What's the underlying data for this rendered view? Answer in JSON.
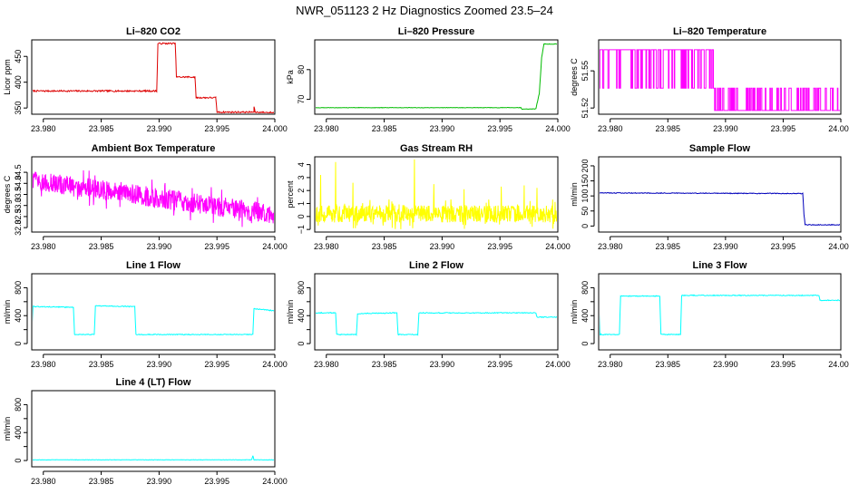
{
  "figure": {
    "title": "NWR_051123  2 Hz Diagnostics Zoomed 23.5–24"
  },
  "colors": {
    "red": "#dd0000",
    "green": "#00bb00",
    "magenta": "#ff00ff",
    "yellow": "#ffff00",
    "blue": "#0000bb",
    "cyan": "#00ffff",
    "axis": "#000000"
  },
  "chart_data": [
    {
      "id": "co2",
      "type": "line",
      "title": "Li–820 CO2",
      "ylabel": "Licor ppm",
      "color": "red",
      "xlim": [
        23.979,
        24.0
      ],
      "ylim": [
        338,
        482
      ],
      "xticks": [
        23.98,
        23.985,
        23.99,
        23.995,
        24.0
      ],
      "xtick_labels": [
        "23.980",
        "23.985",
        "23.990",
        "23.995",
        "24.000"
      ],
      "yticks": [
        350,
        400,
        450
      ],
      "ytick_labels": [
        "350",
        "400",
        "450"
      ],
      "series": [
        {
          "name": "CO2",
          "pattern": "steps",
          "noise": 1.5,
          "x": [
            23.979,
            23.9898,
            23.9899,
            23.9914,
            23.9915,
            23.9931,
            23.9932,
            23.9949,
            23.995,
            23.9982,
            23.9982,
            23.9983,
            24.0
          ],
          "y": [
            383,
            383,
            475,
            475,
            410,
            410,
            370,
            370,
            342,
            342,
            352,
            342,
            341
          ]
        }
      ]
    },
    {
      "id": "pressure",
      "type": "line",
      "title": "Li–820 Pressure",
      "ylabel": "kPa",
      "color": "green",
      "xlim": [
        23.979,
        24.0
      ],
      "ylim": [
        65,
        90
      ],
      "xticks": [
        23.98,
        23.985,
        23.99,
        23.995,
        24.0
      ],
      "xtick_labels": [
        "23.980",
        "23.985",
        "23.990",
        "23.995",
        "24.000"
      ],
      "yticks": [
        70,
        80
      ],
      "ytick_labels": [
        "70",
        "80"
      ],
      "series": [
        {
          "name": "pressure",
          "pattern": "steps",
          "noise": 0.08,
          "x": [
            23.979,
            23.9968,
            23.9969,
            23.9981,
            23.9984,
            23.9986,
            23.9988,
            24.0
          ],
          "y": [
            67.2,
            67.2,
            66.7,
            66.8,
            72,
            84,
            88.6,
            88.6
          ]
        }
      ]
    },
    {
      "id": "temperature",
      "type": "line",
      "title": "Li–820 Temperature",
      "ylabel": "degrees C",
      "color": "magenta",
      "xlim": [
        23.979,
        24.0
      ],
      "ylim": [
        51.515,
        51.575
      ],
      "xticks": [
        23.98,
        23.985,
        23.99,
        23.995,
        24.0
      ],
      "xtick_labels": [
        "23.980",
        "23.985",
        "23.990",
        "23.995",
        "24.000"
      ],
      "yticks": [
        51.52,
        51.55
      ],
      "ytick_labels": [
        "51.52",
        "51.55"
      ],
      "series": [
        {
          "name": "temp",
          "pattern": "digital",
          "levels": [
            51.536,
            51.567,
            51.518
          ],
          "switch_x": 23.989,
          "flip_prob": [
            0.22,
            0.3
          ],
          "x_range": [
            23.979,
            24.0
          ]
        }
      ]
    },
    {
      "id": "box_temp",
      "type": "line",
      "title": "Ambient Box Temperature",
      "ylabel": "degrees C",
      "color": "magenta",
      "xlim": [
        23.979,
        24.0
      ],
      "ylim": [
        31.8,
        35.2
      ],
      "xticks": [
        23.98,
        23.985,
        23.99,
        23.995,
        24.0
      ],
      "xtick_labels": [
        "23.980",
        "23.985",
        "23.990",
        "23.995",
        "24.000"
      ],
      "yticks": [
        32.0,
        32.5,
        33.0,
        33.5,
        34.0,
        34.5
      ],
      "ytick_labels": [
        "32.0",
        "32.5",
        "33.0",
        "33.5",
        "34.0",
        "34.5"
      ],
      "series": [
        {
          "name": "box",
          "pattern": "noise",
          "trend": [
            34.15,
            32.6
          ],
          "amp": 0.75,
          "x_range": [
            23.979,
            24.0
          ]
        }
      ]
    },
    {
      "id": "rh",
      "type": "line",
      "title": "Gas Stream RH",
      "ylabel": "percent",
      "color": "yellow",
      "xlim": [
        23.979,
        24.0
      ],
      "ylim": [
        -1.2,
        4.6
      ],
      "xticks": [
        23.98,
        23.985,
        23.99,
        23.995,
        24.0
      ],
      "xtick_labels": [
        "23.980",
        "23.985",
        "23.990",
        "23.995",
        "24.000"
      ],
      "yticks": [
        -1,
        0,
        1,
        2,
        3,
        4
      ],
      "ytick_labels": [
        "−1",
        "0",
        "1",
        "2",
        "3",
        "4"
      ],
      "series": [
        {
          "name": "rh",
          "pattern": "noise",
          "trend": [
            0.2,
            0.2
          ],
          "amp": 1.1,
          "spike_x": [
            23.9795,
            23.9808,
            23.9823,
            23.9876,
            23.9893,
            23.9919,
            23.9951,
            23.9971,
            23.9982
          ],
          "spike_y": [
            3.2,
            4.2,
            2.6,
            4.4,
            2.5,
            2.1,
            2.3,
            2.4,
            2.2
          ],
          "x_range": [
            23.979,
            24.0
          ]
        }
      ]
    },
    {
      "id": "sample_flow",
      "type": "line",
      "title": "Sample Flow",
      "ylabel": "ml/min",
      "color": "blue",
      "xlim": [
        23.979,
        24.0
      ],
      "ylim": [
        -20,
        230
      ],
      "xticks": [
        23.98,
        23.985,
        23.99,
        23.995,
        24.0
      ],
      "xtick_labels": [
        "23.980",
        "23.985",
        "23.990",
        "23.995",
        "24.000"
      ],
      "yticks": [
        0,
        50,
        100,
        150,
        200
      ],
      "ytick_labels": [
        "0",
        "50",
        "100",
        "150",
        "200"
      ],
      "series": [
        {
          "name": "sample",
          "pattern": "steps",
          "noise": 1.2,
          "x": [
            23.979,
            23.9967,
            23.9968,
            23.9969,
            24.0
          ],
          "y": [
            110,
            108,
            40,
            4,
            4
          ]
        }
      ]
    },
    {
      "id": "line1",
      "type": "line",
      "title": "Line 1 Flow",
      "ylabel": "ml/min",
      "color": "cyan",
      "xlim": [
        23.979,
        24.0
      ],
      "ylim": [
        -90,
        1000
      ],
      "xticks": [
        23.98,
        23.985,
        23.99,
        23.995,
        24.0
      ],
      "xtick_labels": [
        "23.980",
        "23.985",
        "23.990",
        "23.995",
        "24.000"
      ],
      "yticks": [
        0,
        200,
        400,
        600,
        800
      ],
      "ytick_labels": [
        "0",
        "400",
        "800"
      ],
      "series": [
        {
          "name": "l1",
          "pattern": "steps",
          "noise": 6,
          "x": [
            23.979,
            23.9791,
            23.9826,
            23.9827,
            23.9844,
            23.9845,
            23.9879,
            23.988,
            23.9981,
            23.9982,
            24.0
          ],
          "y": [
            130,
            530,
            520,
            130,
            130,
            540,
            530,
            130,
            130,
            500,
            470
          ]
        }
      ]
    },
    {
      "id": "line2",
      "type": "line",
      "title": "Line 2 Flow",
      "ylabel": "ml/min",
      "color": "cyan",
      "xlim": [
        23.979,
        24.0
      ],
      "ylim": [
        -90,
        1000
      ],
      "xticks": [
        23.98,
        23.985,
        23.99,
        23.995,
        24.0
      ],
      "xtick_labels": [
        "23.980",
        "23.985",
        "23.990",
        "23.995",
        "24.000"
      ],
      "yticks": [
        0,
        200,
        400,
        600,
        800
      ],
      "ytick_labels": [
        "0",
        "400",
        "800"
      ],
      "series": [
        {
          "name": "l2",
          "pattern": "steps",
          "noise": 6,
          "x": [
            23.979,
            23.9808,
            23.9809,
            23.9826,
            23.9827,
            23.9861,
            23.9862,
            23.9879,
            23.988,
            23.9981,
            23.9982,
            24.0
          ],
          "y": [
            440,
            440,
            130,
            130,
            430,
            440,
            130,
            130,
            440,
            440,
            380,
            380
          ]
        }
      ]
    },
    {
      "id": "line3",
      "type": "line",
      "title": "Line 3 Flow",
      "ylabel": "ml/min",
      "color": "cyan",
      "xlim": [
        23.979,
        24.0
      ],
      "ylim": [
        -90,
        1000
      ],
      "xticks": [
        23.98,
        23.985,
        23.99,
        23.995,
        24.0
      ],
      "xtick_labels": [
        "23.980",
        "23.985",
        "23.990",
        "23.995",
        "24.000"
      ],
      "yticks": [
        0,
        200,
        400,
        600,
        800
      ],
      "ytick_labels": [
        "0",
        "400",
        "800"
      ],
      "series": [
        {
          "name": "l3",
          "pattern": "steps",
          "noise": 6,
          "x": [
            23.979,
            23.9791,
            23.9792,
            23.9808,
            23.9809,
            23.9843,
            23.9844,
            23.9861,
            23.9862,
            23.9981,
            23.9982,
            24.0
          ],
          "y": [
            660,
            130,
            130,
            130,
            680,
            680,
            130,
            130,
            690,
            690,
            620,
            620
          ]
        }
      ]
    },
    {
      "id": "line4",
      "type": "line",
      "title": "Line 4 (LT) Flow",
      "ylabel": "ml/min",
      "color": "cyan",
      "xlim": [
        23.979,
        24.0
      ],
      "ylim": [
        -90,
        1000
      ],
      "xticks": [
        23.98,
        23.985,
        23.99,
        23.995,
        24.0
      ],
      "xtick_labels": [
        "23.980",
        "23.985",
        "23.990",
        "23.995",
        "24.000"
      ],
      "yticks": [
        0,
        200,
        400,
        600,
        800
      ],
      "ytick_labels": [
        "0",
        "400",
        "800"
      ],
      "series": [
        {
          "name": "l4",
          "pattern": "steps",
          "noise": 3,
          "x": [
            23.979,
            23.998,
            23.9981,
            23.9982,
            24.0
          ],
          "y": [
            10,
            10,
            70,
            10,
            10
          ]
        }
      ]
    }
  ]
}
